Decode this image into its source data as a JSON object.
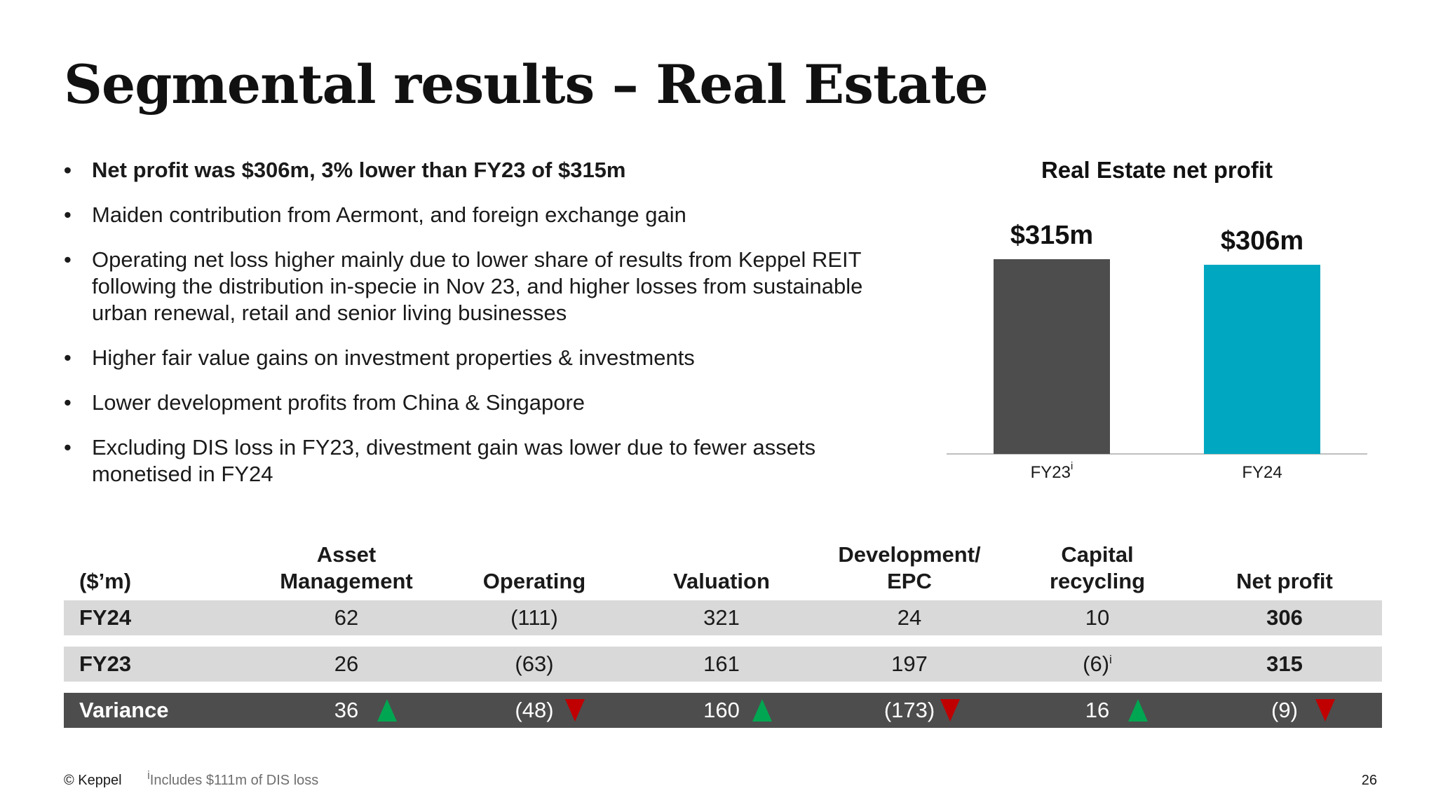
{
  "title": "Segmental results – Real Estate",
  "bullets": [
    {
      "text": "Net profit was $306m, 3% lower than FY23 of $315m",
      "bold": true
    },
    {
      "text": "Maiden contribution from Aermont, and foreign exchange gain",
      "bold": false
    },
    {
      "text": "Operating net loss higher mainly due to lower share of results from Keppel REIT following the distribution in-specie in Nov 23, and higher losses from sustainable urban renewal, retail and senior living businesses",
      "bold": false
    },
    {
      "text": "Higher fair value gains on investment properties & investments",
      "bold": false
    },
    {
      "text": "Lower development profits from China & Singapore",
      "bold": false
    },
    {
      "text": "Excluding DIS loss in FY23, divestment gain was lower due to fewer assets monetised in FY24",
      "bold": false
    }
  ],
  "chart_data": {
    "type": "bar",
    "title": "Real Estate net profit",
    "categories": [
      "FY23",
      "FY24"
    ],
    "category_footnotes": [
      "i",
      ""
    ],
    "values": [
      315,
      306
    ],
    "data_labels": [
      "$315m",
      "$306m"
    ],
    "colors": [
      "#4d4d4d",
      "#00a7c0"
    ],
    "ylim": [
      0,
      315
    ],
    "grid": false
  },
  "table": {
    "headers": [
      "($’m)",
      "Asset\nManagement",
      "Operating",
      "Valuation",
      "Development/\nEPC",
      "Capital\nrecycling",
      "Net profit"
    ],
    "rows": [
      {
        "label": "FY24",
        "cells": [
          "62",
          "(111)",
          "321",
          "24",
          "10",
          "306"
        ],
        "style": "light"
      },
      {
        "label": "FY23",
        "cells": [
          "26",
          "(63)",
          "161",
          "197",
          "(6)",
          "315"
        ],
        "style": "light",
        "footnote_cell": 4,
        "footnote": "i"
      },
      {
        "label": "Variance",
        "cells": [
          "36",
          "(48)",
          "160",
          "(173)",
          "16",
          "(9)"
        ],
        "style": "dark",
        "trends": [
          "up",
          "down",
          "up",
          "down",
          "up",
          "down"
        ]
      }
    ]
  },
  "colors": {
    "up": "#00a651",
    "down": "#c00000",
    "accent": "#00a7c0",
    "dark": "#4d4d4d",
    "row_light": "#d9d9d9"
  },
  "footer": {
    "copyright": "© Keppel",
    "footnote_marker": "i",
    "footnote_text": "Includes $111m of DIS loss",
    "page": "26"
  }
}
